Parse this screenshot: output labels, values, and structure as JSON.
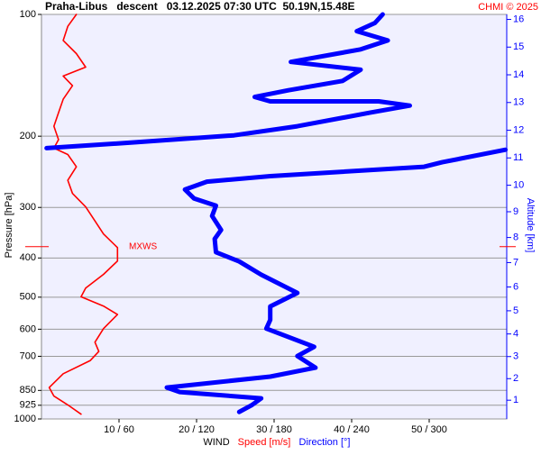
{
  "chart_data": {
    "type": "profile",
    "title": "Praha-Libus   descent   03.12.2025 07:30 UTC  50.19N,15.48E",
    "copyright": "CHMI © 2025",
    "ylabel": "Pressure [hPa]",
    "y2label": "Altitude [km]",
    "xlabel": "WIND",
    "xlabel_speed": "Speed [m/s]",
    "xlabel_direction": "Direction [°]",
    "yscale": "log",
    "ylim": [
      100,
      1000
    ],
    "yticks": [
      100,
      200,
      300,
      400,
      500,
      600,
      700,
      850,
      925,
      1000
    ],
    "y2ticks": [
      1,
      2,
      3,
      4,
      5,
      6,
      7,
      8,
      9,
      10,
      11,
      12,
      13,
      14,
      15,
      16
    ],
    "xlim": [
      0,
      60
    ],
    "xticks": [
      {
        "value": 10,
        "label": "10 / 60"
      },
      {
        "value": 20,
        "label": "20 / 120"
      },
      {
        "value": 30,
        "label": "30 / 180"
      },
      {
        "value": 40,
        "label": "40 / 240"
      },
      {
        "value": 50,
        "label": "50 / 300"
      }
    ],
    "annotation": {
      "text": "MXWS",
      "pressure": 375
    },
    "series": [
      {
        "name": "Speed [m/s]",
        "color": "#ff0000",
        "scale": 1,
        "pressure": [
          100,
          107,
          116,
          125,
          135,
          142,
          150,
          162,
          175,
          189,
          204,
          214,
          222,
          238,
          257,
          277,
          299,
          324,
          349,
          377,
          407,
          439,
          475,
          499,
          526,
          552,
          598,
          646,
          681,
          717,
          773,
          836,
          878,
          923,
          973
        ],
        "values": [
          4.5,
          3.4,
          2.8,
          4.5,
          5.7,
          2.8,
          4.0,
          2.8,
          2.2,
          1.6,
          2.2,
          1.6,
          3.4,
          4.5,
          3.4,
          4.0,
          5.7,
          6.9,
          8.0,
          9.8,
          9.8,
          8.0,
          5.7,
          5.1,
          8.0,
          9.8,
          8.0,
          6.9,
          7.4,
          6.3,
          2.8,
          1.0,
          1.6,
          3.4,
          5.1
        ]
      },
      {
        "name": "Direction [°]",
        "color": "#0000ff",
        "scale": 6,
        "pressure": [
          100,
          105,
          110,
          116,
          122,
          131,
          137,
          146,
          154,
          160,
          164,
          164,
          164,
          168,
          175,
          189,
          199,
          207,
          214,
          null,
          216,
          232,
          238,
          251,
          259,
          271,
          285,
          297,
          315,
          341,
          359,
          387,
          408,
          440,
          488,
          527,
          569,
          598,
          663,
          699,
          747,
          786,
          836,
          858,
          889,
          923,
          961
        ],
        "values": [
          264,
          258,
          244,
          268,
          247,
          193,
          247,
          233,
          191,
          165,
          177,
          212,
          261,
          285,
          254,
          198,
          149,
          73,
          4,
          null,
          359,
          310,
          296,
          177,
          128,
          111,
          118,
          135,
          132,
          139,
          134,
          135,
          153,
          170,
          198,
          177,
          177,
          174,
          211,
          198,
          212,
          177,
          97,
          107,
          170,
          163,
          153
        ]
      }
    ]
  }
}
